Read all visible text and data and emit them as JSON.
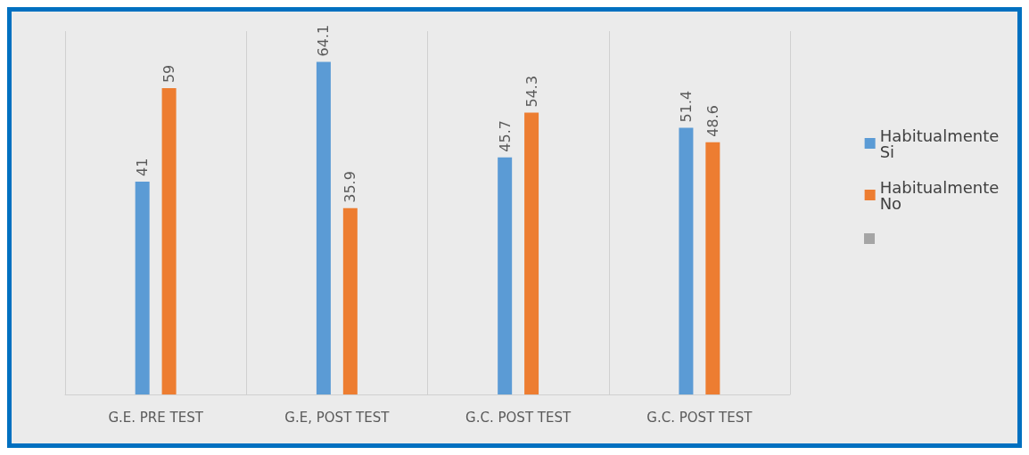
{
  "chart_data": {
    "type": "bar",
    "categories": [
      "G.E. PRE TEST",
      "G.E, POST TEST",
      "G.C. POST TEST",
      "G.C. POST TEST"
    ],
    "series": [
      {
        "name": "Habitualmente Si",
        "color": "#5b9bd5",
        "values": [
          41,
          64.1,
          45.7,
          51.4
        ]
      },
      {
        "name": "Habitualmente No",
        "color": "#ed7d31",
        "values": [
          59,
          35.9,
          54.3,
          48.6
        ]
      }
    ],
    "ylim": [
      0,
      70
    ],
    "tick_labels": "x",
    "data_labels": true,
    "grid": "x",
    "legend": "right"
  }
}
